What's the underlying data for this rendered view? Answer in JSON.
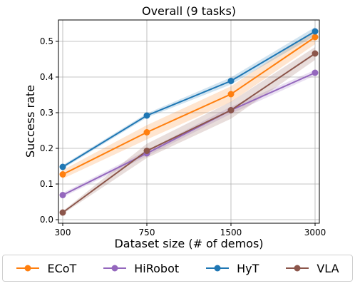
{
  "chart_data": {
    "type": "line",
    "title": "Overall (9 tasks)",
    "xlabel": "Dataset size (# of demos)",
    "ylabel": "Success rate",
    "categories": [
      "300",
      "750",
      "1500",
      "3000"
    ],
    "ylim": [
      -0.01,
      0.56
    ],
    "yticks": [
      0.0,
      0.1,
      0.2,
      0.3,
      0.4,
      0.5
    ],
    "ytick_labels": [
      "0.0",
      "0.1",
      "0.2",
      "0.3",
      "0.4",
      "0.5"
    ],
    "grid": true,
    "legend_position": "bottom",
    "series": [
      {
        "name": "ECoT",
        "color": "#ff7f0e",
        "values": [
          0.127,
          0.245,
          0.352,
          0.512
        ],
        "band": [
          0.012,
          0.02,
          0.022,
          0.02
        ]
      },
      {
        "name": "HiRobot",
        "color": "#9467bd",
        "values": [
          0.069,
          0.186,
          0.307,
          0.412
        ],
        "band": [
          0.006,
          0.008,
          0.01,
          0.008
        ]
      },
      {
        "name": "HyT",
        "color": "#1f77b4",
        "values": [
          0.148,
          0.292,
          0.389,
          0.528
        ],
        "band": [
          0.005,
          0.006,
          0.01,
          0.012
        ]
      },
      {
        "name": "VLA",
        "color": "#8c564b",
        "values": [
          0.02,
          0.193,
          0.307,
          0.466
        ],
        "band": [
          0.004,
          0.02,
          0.024,
          0.018
        ]
      }
    ]
  }
}
